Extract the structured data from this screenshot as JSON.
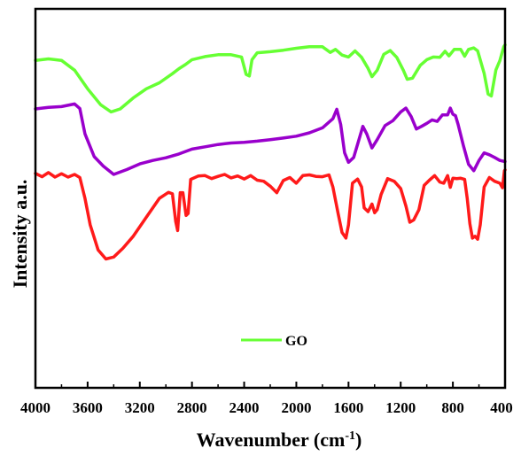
{
  "chart_data": {
    "type": "line",
    "xlabel": "Wavenumber (cm",
    "xlabel_sup": "-1",
    "xlabel_close": ")",
    "ylabel": "Intensity a.u.",
    "xlim": [
      4000,
      400
    ],
    "x_reversed": true,
    "y_ticks_shown": false,
    "grid": false,
    "legend": {
      "placement": "bottom-center",
      "entries": [
        {
          "label": "GO",
          "color": "#66ff33"
        }
      ]
    },
    "x_ticks": [
      4000,
      3600,
      3200,
      2800,
      2400,
      2000,
      1600,
      1200,
      800,
      400
    ],
    "x_tick_labels": [
      "4000",
      "3600",
      "3200",
      "2800",
      "2400",
      "2000",
      "1600",
      "1200",
      "800",
      "400"
    ],
    "series": [
      {
        "color": "#66ff33",
        "points": [
          [
            4000,
            0.864
          ],
          [
            3900,
            0.868
          ],
          [
            3800,
            0.864
          ],
          [
            3700,
            0.838
          ],
          [
            3600,
            0.789
          ],
          [
            3500,
            0.747
          ],
          [
            3420,
            0.728
          ],
          [
            3350,
            0.736
          ],
          [
            3250,
            0.765
          ],
          [
            3150,
            0.789
          ],
          [
            3050,
            0.805
          ],
          [
            2950,
            0.829
          ],
          [
            2900,
            0.842
          ],
          [
            2850,
            0.853
          ],
          [
            2800,
            0.866
          ],
          [
            2700,
            0.874
          ],
          [
            2600,
            0.879
          ],
          [
            2500,
            0.879
          ],
          [
            2420,
            0.873
          ],
          [
            2385,
            0.827
          ],
          [
            2360,
            0.823
          ],
          [
            2340,
            0.866
          ],
          [
            2300,
            0.884
          ],
          [
            2200,
            0.887
          ],
          [
            2100,
            0.891
          ],
          [
            2000,
            0.896
          ],
          [
            1900,
            0.9
          ],
          [
            1800,
            0.9
          ],
          [
            1740,
            0.885
          ],
          [
            1700,
            0.893
          ],
          [
            1650,
            0.878
          ],
          [
            1600,
            0.873
          ],
          [
            1550,
            0.889
          ],
          [
            1500,
            0.872
          ],
          [
            1450,
            0.843
          ],
          [
            1420,
            0.821
          ],
          [
            1380,
            0.838
          ],
          [
            1330,
            0.88
          ],
          [
            1280,
            0.89
          ],
          [
            1230,
            0.872
          ],
          [
            1180,
            0.838
          ],
          [
            1150,
            0.814
          ],
          [
            1110,
            0.817
          ],
          [
            1050,
            0.851
          ],
          [
            1000,
            0.866
          ],
          [
            950,
            0.873
          ],
          [
            900,
            0.872
          ],
          [
            860,
            0.888
          ],
          [
            830,
            0.876
          ],
          [
            790,
            0.893
          ],
          [
            740,
            0.893
          ],
          [
            710,
            0.875
          ],
          [
            680,
            0.893
          ],
          [
            640,
            0.897
          ],
          [
            610,
            0.889
          ],
          [
            560,
            0.83
          ],
          [
            530,
            0.775
          ],
          [
            505,
            0.77
          ],
          [
            470,
            0.839
          ],
          [
            440,
            0.863
          ],
          [
            410,
            0.9
          ],
          [
            400,
            0.905
          ]
        ]
      },
      {
        "color": "#9900cc",
        "points": [
          [
            4000,
            0.736
          ],
          [
            3900,
            0.74
          ],
          [
            3800,
            0.742
          ],
          [
            3700,
            0.749
          ],
          [
            3660,
            0.737
          ],
          [
            3620,
            0.67
          ],
          [
            3550,
            0.61
          ],
          [
            3480,
            0.585
          ],
          [
            3400,
            0.563
          ],
          [
            3300,
            0.576
          ],
          [
            3200,
            0.591
          ],
          [
            3100,
            0.6
          ],
          [
            3000,
            0.607
          ],
          [
            2900,
            0.617
          ],
          [
            2800,
            0.63
          ],
          [
            2700,
            0.636
          ],
          [
            2600,
            0.642
          ],
          [
            2500,
            0.646
          ],
          [
            2400,
            0.648
          ],
          [
            2300,
            0.651
          ],
          [
            2200,
            0.655
          ],
          [
            2100,
            0.659
          ],
          [
            2000,
            0.664
          ],
          [
            1900,
            0.673
          ],
          [
            1800,
            0.686
          ],
          [
            1720,
            0.71
          ],
          [
            1690,
            0.735
          ],
          [
            1660,
            0.695
          ],
          [
            1630,
            0.62
          ],
          [
            1600,
            0.595
          ],
          [
            1560,
            0.608
          ],
          [
            1520,
            0.655
          ],
          [
            1490,
            0.69
          ],
          [
            1460,
            0.67
          ],
          [
            1420,
            0.633
          ],
          [
            1380,
            0.655
          ],
          [
            1320,
            0.692
          ],
          [
            1260,
            0.705
          ],
          [
            1200,
            0.728
          ],
          [
            1160,
            0.738
          ],
          [
            1120,
            0.716
          ],
          [
            1080,
            0.683
          ],
          [
            1040,
            0.69
          ],
          [
            1000,
            0.698
          ],
          [
            960,
            0.707
          ],
          [
            920,
            0.703
          ],
          [
            880,
            0.72
          ],
          [
            840,
            0.72
          ],
          [
            820,
            0.738
          ],
          [
            800,
            0.722
          ],
          [
            780,
            0.718
          ],
          [
            760,
            0.695
          ],
          [
            720,
            0.64
          ],
          [
            680,
            0.59
          ],
          [
            640,
            0.573
          ],
          [
            600,
            0.6
          ],
          [
            560,
            0.62
          ],
          [
            520,
            0.615
          ],
          [
            480,
            0.608
          ],
          [
            440,
            0.6
          ],
          [
            400,
            0.597
          ]
        ]
      },
      {
        "color": "#ff1a1a",
        "points": [
          [
            4000,
            0.566
          ],
          [
            3950,
            0.557
          ],
          [
            3900,
            0.568
          ],
          [
            3850,
            0.556
          ],
          [
            3800,
            0.565
          ],
          [
            3750,
            0.556
          ],
          [
            3700,
            0.563
          ],
          [
            3660,
            0.555
          ],
          [
            3620,
            0.5
          ],
          [
            3580,
            0.43
          ],
          [
            3520,
            0.364
          ],
          [
            3460,
            0.34
          ],
          [
            3400,
            0.345
          ],
          [
            3330,
            0.368
          ],
          [
            3250,
            0.4
          ],
          [
            3150,
            0.45
          ],
          [
            3050,
            0.5
          ],
          [
            2980,
            0.516
          ],
          [
            2950,
            0.512
          ],
          [
            2925,
            0.439
          ],
          [
            2910,
            0.415
          ],
          [
            2890,
            0.515
          ],
          [
            2870,
            0.515
          ],
          [
            2845,
            0.455
          ],
          [
            2830,
            0.46
          ],
          [
            2810,
            0.55
          ],
          [
            2750,
            0.559
          ],
          [
            2700,
            0.56
          ],
          [
            2650,
            0.552
          ],
          [
            2600,
            0.558
          ],
          [
            2550,
            0.563
          ],
          [
            2500,
            0.554
          ],
          [
            2450,
            0.559
          ],
          [
            2400,
            0.551
          ],
          [
            2350,
            0.56
          ],
          [
            2300,
            0.548
          ],
          [
            2250,
            0.545
          ],
          [
            2200,
            0.532
          ],
          [
            2150,
            0.515
          ],
          [
            2100,
            0.547
          ],
          [
            2050,
            0.555
          ],
          [
            2000,
            0.54
          ],
          [
            1950,
            0.56
          ],
          [
            1900,
            0.562
          ],
          [
            1850,
            0.558
          ],
          [
            1800,
            0.557
          ],
          [
            1750,
            0.562
          ],
          [
            1720,
            0.53
          ],
          [
            1680,
            0.46
          ],
          [
            1650,
            0.41
          ],
          [
            1620,
            0.395
          ],
          [
            1600,
            0.43
          ],
          [
            1570,
            0.54
          ],
          [
            1530,
            0.551
          ],
          [
            1500,
            0.53
          ],
          [
            1480,
            0.475
          ],
          [
            1450,
            0.465
          ],
          [
            1420,
            0.485
          ],
          [
            1400,
            0.462
          ],
          [
            1380,
            0.47
          ],
          [
            1350,
            0.51
          ],
          [
            1300,
            0.552
          ],
          [
            1250,
            0.545
          ],
          [
            1200,
            0.526
          ],
          [
            1160,
            0.48
          ],
          [
            1130,
            0.437
          ],
          [
            1100,
            0.443
          ],
          [
            1060,
            0.47
          ],
          [
            1020,
            0.534
          ],
          [
            980,
            0.548
          ],
          [
            940,
            0.56
          ],
          [
            900,
            0.543
          ],
          [
            870,
            0.54
          ],
          [
            840,
            0.56
          ],
          [
            820,
            0.529
          ],
          [
            800,
            0.553
          ],
          [
            770,
            0.552
          ],
          [
            740,
            0.553
          ],
          [
            710,
            0.55
          ],
          [
            690,
            0.5
          ],
          [
            670,
            0.433
          ],
          [
            650,
            0.395
          ],
          [
            630,
            0.4
          ],
          [
            610,
            0.392
          ],
          [
            590,
            0.43
          ],
          [
            560,
            0.53
          ],
          [
            520,
            0.555
          ],
          [
            480,
            0.545
          ],
          [
            440,
            0.54
          ],
          [
            420,
            0.528
          ],
          [
            405,
            0.573
          ],
          [
            400,
            0.575
          ]
        ]
      }
    ]
  }
}
